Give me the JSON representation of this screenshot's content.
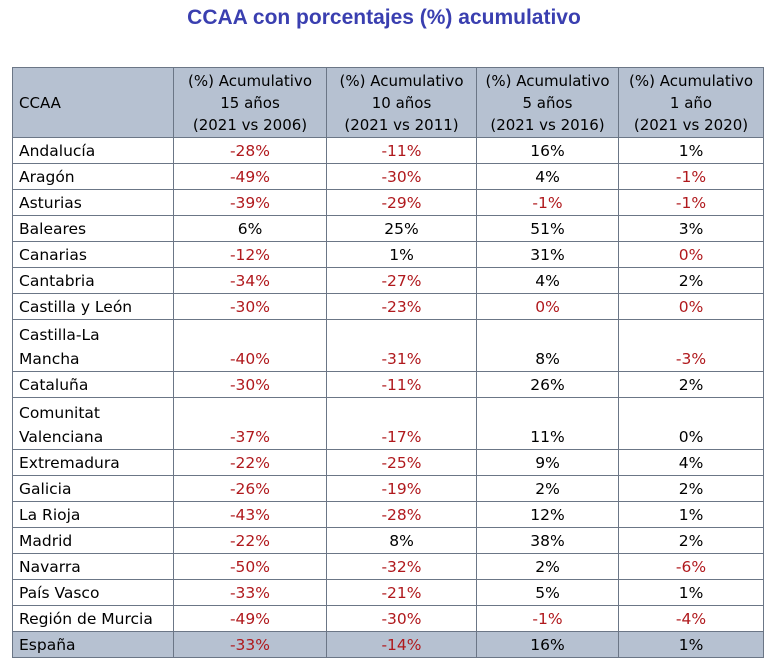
{
  "title": "CCAA con porcentajes (%) acumulativo",
  "header": {
    "region": "CCAA",
    "columns": [
      [
        "(%) Acumulativo",
        "15 años",
        "(2021 vs 2006)"
      ],
      [
        "(%) Acumulativo",
        "10 años",
        "(2021 vs 2011)"
      ],
      [
        "(%) Acumulativo",
        "5 años",
        "(2021 vs 2016)"
      ],
      [
        "(%) Acumulativo",
        "1 año",
        "(2021 vs 2020)"
      ]
    ]
  },
  "rows": [
    {
      "name": [
        "Andalucía"
      ],
      "values": [
        "-28%",
        "-11%",
        "16%",
        "1%"
      ],
      "neg": [
        true,
        true,
        false,
        false
      ]
    },
    {
      "name": [
        "Aragón"
      ],
      "values": [
        "-49%",
        "-30%",
        "4%",
        "-1%"
      ],
      "neg": [
        true,
        true,
        false,
        true
      ]
    },
    {
      "name": [
        "Asturias"
      ],
      "values": [
        "-39%",
        "-29%",
        "-1%",
        "-1%"
      ],
      "neg": [
        true,
        true,
        true,
        true
      ]
    },
    {
      "name": [
        "Baleares"
      ],
      "values": [
        "6%",
        "25%",
        "51%",
        "3%"
      ],
      "neg": [
        false,
        false,
        false,
        false
      ]
    },
    {
      "name": [
        "Canarias"
      ],
      "values": [
        "-12%",
        "1%",
        "31%",
        "0%"
      ],
      "neg": [
        true,
        false,
        false,
        true
      ]
    },
    {
      "name": [
        "Cantabria"
      ],
      "values": [
        "-34%",
        "-27%",
        "4%",
        "2%"
      ],
      "neg": [
        true,
        true,
        false,
        false
      ]
    },
    {
      "name": [
        "Castilla y León"
      ],
      "values": [
        "-30%",
        "-23%",
        "0%",
        "0%"
      ],
      "neg": [
        true,
        true,
        true,
        true
      ]
    },
    {
      "name": [
        "Castilla-La",
        "Mancha"
      ],
      "values": [
        "-40%",
        "-31%",
        "8%",
        "-3%"
      ],
      "neg": [
        true,
        true,
        false,
        true
      ]
    },
    {
      "name": [
        "Cataluña"
      ],
      "values": [
        "-30%",
        "-11%",
        "26%",
        "2%"
      ],
      "neg": [
        true,
        true,
        false,
        false
      ]
    },
    {
      "name": [
        "Comunitat",
        "Valenciana"
      ],
      "values": [
        "-37%",
        "-17%",
        "11%",
        "0%"
      ],
      "neg": [
        true,
        true,
        false,
        false
      ]
    },
    {
      "name": [
        "Extremadura"
      ],
      "values": [
        "-22%",
        "-25%",
        "9%",
        "4%"
      ],
      "neg": [
        true,
        true,
        false,
        false
      ]
    },
    {
      "name": [
        "Galicia"
      ],
      "values": [
        "-26%",
        "-19%",
        "2%",
        "2%"
      ],
      "neg": [
        true,
        true,
        false,
        false
      ]
    },
    {
      "name": [
        "La Rioja"
      ],
      "values": [
        "-43%",
        "-28%",
        "12%",
        "1%"
      ],
      "neg": [
        true,
        true,
        false,
        false
      ]
    },
    {
      "name": [
        "Madrid"
      ],
      "values": [
        "-22%",
        "8%",
        "38%",
        "2%"
      ],
      "neg": [
        true,
        false,
        false,
        false
      ]
    },
    {
      "name": [
        "Navarra"
      ],
      "values": [
        "-50%",
        "-32%",
        "2%",
        "-6%"
      ],
      "neg": [
        true,
        true,
        false,
        true
      ]
    },
    {
      "name": [
        "País Vasco"
      ],
      "values": [
        "-33%",
        "-21%",
        "5%",
        "1%"
      ],
      "neg": [
        true,
        true,
        false,
        false
      ]
    },
    {
      "name": [
        "Región de Murcia"
      ],
      "values": [
        "-49%",
        "-30%",
        "-1%",
        "-4%"
      ],
      "neg": [
        true,
        true,
        true,
        true
      ]
    }
  ],
  "total": {
    "name": [
      "España"
    ],
    "values": [
      "-33%",
      "-14%",
      "16%",
      "1%"
    ],
    "neg": [
      true,
      true,
      false,
      false
    ]
  },
  "colors": {
    "negative": "#b0191d",
    "header_bg": "#b6c1d1",
    "title": "#3a3fb0"
  }
}
